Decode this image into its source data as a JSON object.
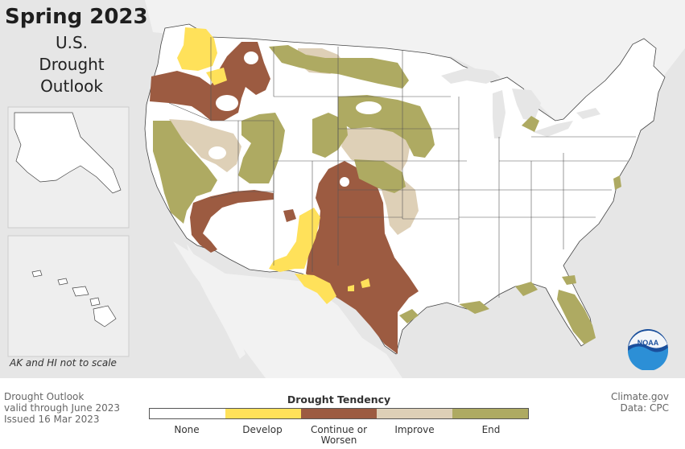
{
  "title": {
    "main": "Spring 2023",
    "lines": [
      "U.S.",
      "Drought",
      "Outlook"
    ]
  },
  "inset_note": "AK and HI not to scale",
  "footer": {
    "left_lines": [
      "Drought Outlook",
      "valid through June 2023",
      "Issued 16 Mar 2023"
    ],
    "right_lines": [
      "Climate.gov",
      "Data: CPC"
    ]
  },
  "legend": {
    "title": "Drought Tendency",
    "items": [
      {
        "label": "None",
        "color": "#ffffff"
      },
      {
        "label": "Develop",
        "color": "#ffe15a"
      },
      {
        "label": "Continue or\nWorsen",
        "color": "#9c5b41"
      },
      {
        "label": "Improve",
        "color": "#ded0b7"
      },
      {
        "label": "End",
        "color": "#aeaa62"
      }
    ]
  },
  "colors": {
    "background": "#e6e6e6",
    "land": "#ffffff",
    "state_border": "#333333",
    "develop": "#ffe15a",
    "continue": "#9c5b41",
    "improve": "#ded0b7",
    "end": "#aeaa62"
  },
  "logo": {
    "text": "NOAA"
  }
}
